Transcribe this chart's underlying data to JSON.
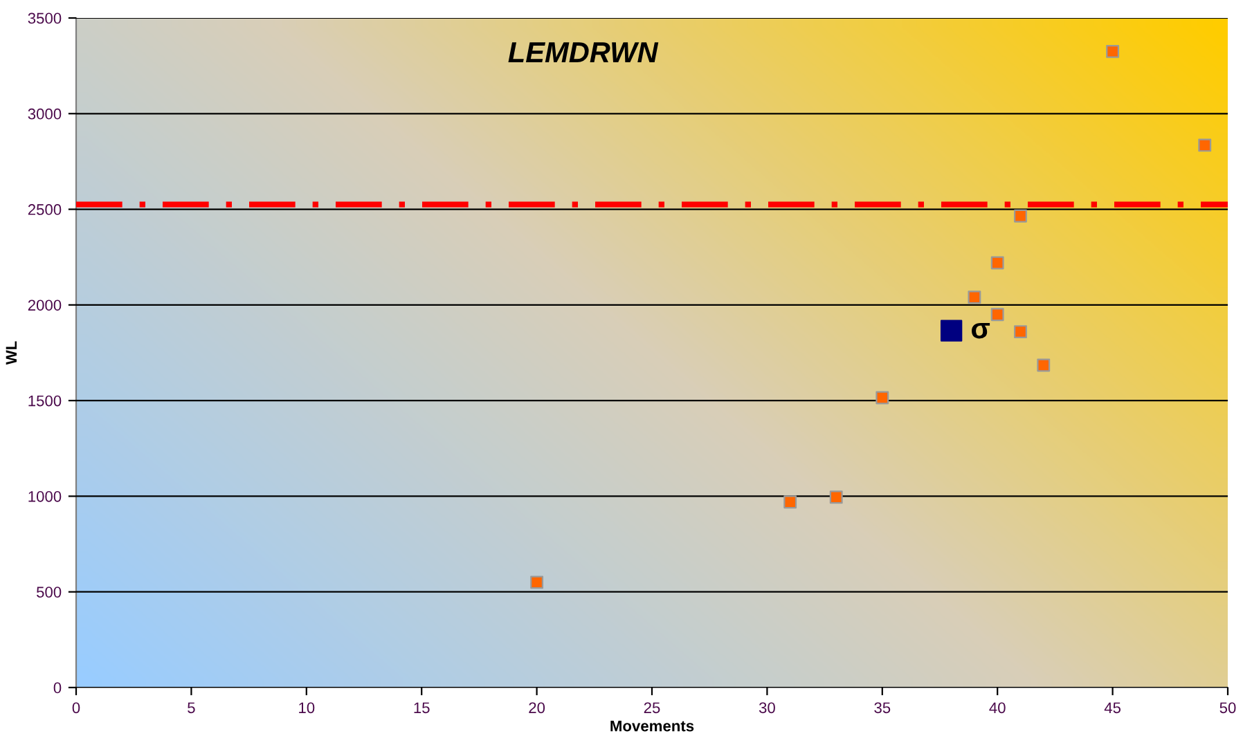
{
  "chart_data": {
    "type": "scatter",
    "title": "LEMDRWN",
    "xlabel": "Movements",
    "ylabel": "WL",
    "xlim": [
      0,
      50
    ],
    "xticks": [
      0,
      5,
      10,
      15,
      20,
      25,
      30,
      35,
      40,
      45,
      50
    ],
    "ylim": [
      0,
      3500
    ],
    "yticks": [
      0,
      500,
      1000,
      1500,
      2000,
      2500,
      3000,
      3500
    ],
    "grid": "y",
    "marker": "square",
    "legend": false,
    "series": [
      {
        "color": "#ff6600",
        "x": [
          20,
          31,
          33,
          35,
          39,
          40,
          40,
          41,
          41,
          42,
          45,
          49
        ],
        "values": [
          550,
          970,
          995,
          1515,
          2040,
          2220,
          1950,
          2465,
          1860,
          1685,
          3325,
          2835
        ]
      },
      {
        "name": "σ",
        "color": "#000080",
        "x": [
          38
        ],
        "values": [
          1865
        ]
      }
    ],
    "ref_lines": [
      {
        "axis": "y",
        "value": 2525,
        "color": "#ff0000",
        "line_style": "dashdot"
      }
    ]
  }
}
